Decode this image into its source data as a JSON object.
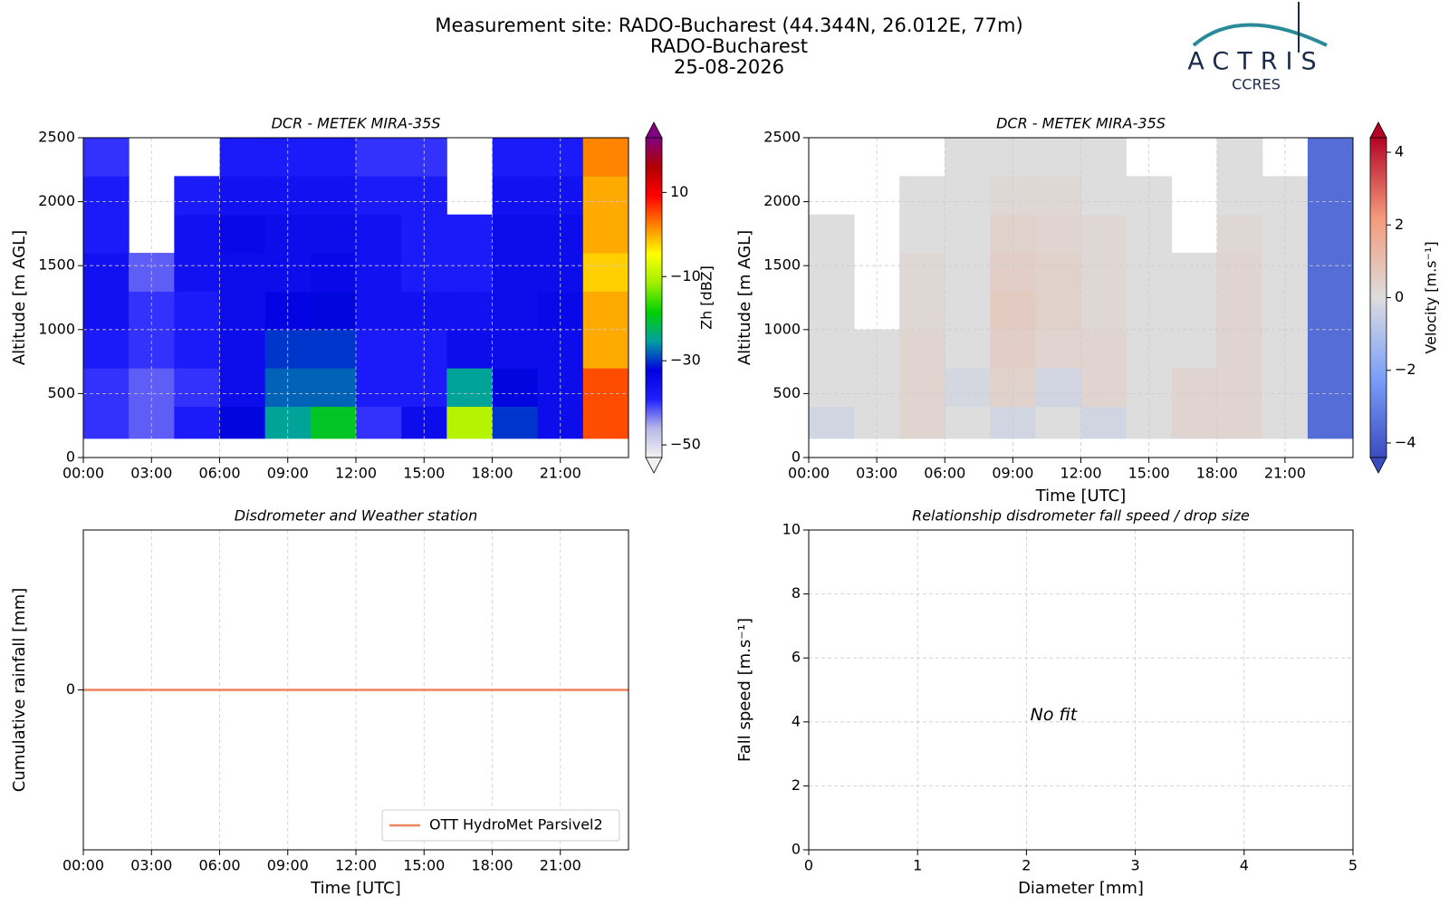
{
  "header": {
    "title": "Measurement site: RADO-Bucharest (44.344N, 26.012E, 77m)",
    "subtitle": "RADO-Bucharest",
    "date": "25-08-2026"
  },
  "logo": {
    "name": "ACTRIS",
    "subtitle": "CCRES"
  },
  "chart_data": [
    {
      "type": "heatmap",
      "title": "DCR - METEK MIRA-35S",
      "y_label": "Altitude [m AGL]",
      "xlim": [
        0,
        24
      ],
      "ylim": [
        0,
        2500
      ],
      "xticks": [
        {
          "value": 0,
          "label": "00:00"
        },
        {
          "value": 3,
          "label": "03:00"
        },
        {
          "value": 6,
          "label": "06:00"
        },
        {
          "value": 9,
          "label": "09:00"
        },
        {
          "value": 12,
          "label": "12:00"
        },
        {
          "value": 15,
          "label": "15:00"
        },
        {
          "value": 18,
          "label": "18:00"
        },
        {
          "value": 21,
          "label": "21:00"
        }
      ],
      "yticks": [
        0,
        500,
        1000,
        1500,
        2000,
        2500
      ],
      "grid": true,
      "x_edges": [
        0,
        2,
        4,
        6,
        8,
        10,
        12,
        14,
        16,
        18,
        20,
        22,
        24
      ],
      "y_edges": [
        150,
        400,
        700,
        1000,
        1300,
        1600,
        1900,
        2200,
        2500
      ],
      "z": [
        [
          -40,
          -42,
          -38,
          -32,
          -25,
          -20,
          -40,
          -35,
          -10,
          -30,
          -35,
          5
        ],
        [
          -40,
          -42,
          -40,
          -35,
          -28,
          -28,
          -38,
          -38,
          -25,
          -32,
          -35,
          5
        ],
        [
          -38,
          -40,
          -38,
          -35,
          -30,
          -30,
          -38,
          -38,
          -35,
          -35,
          -35,
          0
        ],
        [
          -36,
          -40,
          -38,
          -35,
          -33,
          -32,
          -36,
          -36,
          -36,
          -35,
          -34,
          0
        ],
        [
          -36,
          -42,
          -36,
          -35,
          -35,
          -34,
          -36,
          -38,
          -38,
          -35,
          -35,
          -2
        ],
        [
          -38,
          null,
          -36,
          -34,
          -35,
          -35,
          -36,
          -38,
          -38,
          -35,
          -35,
          0
        ],
        [
          -38,
          null,
          -38,
          -36,
          -36,
          -36,
          -38,
          -38,
          null,
          -36,
          -36,
          0
        ],
        [
          -40,
          null,
          null,
          -38,
          -38,
          -38,
          -40,
          -40,
          null,
          -38,
          -38,
          2
        ]
      ],
      "zlim": [
        -53,
        23
      ],
      "zticks": [
        {
          "value": -50,
          "label": "−50"
        },
        {
          "value": -30,
          "label": "−30"
        },
        {
          "value": -10,
          "label": "−10"
        },
        10
      ],
      "colorbar_label": "Zh [dBZ]",
      "colormap": [
        "#f2f2f2",
        "#b8b8e8",
        "#2020ff",
        "#0000e0",
        "#00a0a0",
        "#00d000",
        "#a0f000",
        "#ffff00",
        "#ff8000",
        "#ff0000",
        "#b00000",
        "#800080"
      ]
    },
    {
      "type": "heatmap",
      "title": "DCR - METEK MIRA-35S",
      "x_label": "Time [UTC]",
      "y_label": "Altitude [m AGL]",
      "xlim": [
        0,
        24
      ],
      "ylim": [
        0,
        2500
      ],
      "xticks": [
        {
          "value": 0,
          "label": "00:00"
        },
        {
          "value": 3,
          "label": "03:00"
        },
        {
          "value": 6,
          "label": "06:00"
        },
        {
          "value": 9,
          "label": "09:00"
        },
        {
          "value": 12,
          "label": "12:00"
        },
        {
          "value": 15,
          "label": "15:00"
        },
        {
          "value": 18,
          "label": "18:00"
        },
        {
          "value": 21,
          "label": "21:00"
        }
      ],
      "yticks": [
        0,
        500,
        1000,
        1500,
        2000,
        2500
      ],
      "grid": true,
      "x_edges": [
        0,
        2,
        4,
        6,
        8,
        10,
        12,
        14,
        16,
        18,
        20,
        22,
        24
      ],
      "y_edges": [
        150,
        400,
        700,
        1000,
        1300,
        1600,
        1900,
        2200,
        2500
      ],
      "z": [
        [
          -0.3,
          0,
          0.3,
          0,
          -0.3,
          0,
          -0.3,
          0,
          0.3,
          0.3,
          0,
          -3.5
        ],
        [
          0,
          0,
          0.3,
          -0.2,
          0.4,
          -0.3,
          0.3,
          0,
          0.3,
          0.3,
          0,
          -3.5
        ],
        [
          0,
          0,
          0.3,
          0,
          0.5,
          0.3,
          0.3,
          0,
          0,
          0.3,
          0,
          -3.5
        ],
        [
          0,
          null,
          0.2,
          0,
          0.6,
          0.4,
          0.2,
          0,
          0,
          0.3,
          0,
          -3.5
        ],
        [
          0,
          null,
          0.2,
          0,
          0.5,
          0.4,
          0.2,
          0,
          0,
          0.3,
          0,
          -3.5
        ],
        [
          0,
          null,
          0,
          0,
          0.4,
          0.3,
          0.2,
          0,
          null,
          0.2,
          0,
          -3.5
        ],
        [
          null,
          null,
          0,
          0,
          0.2,
          0.2,
          0,
          0,
          null,
          0,
          0,
          -3.5
        ],
        [
          null,
          null,
          null,
          0,
          0,
          0,
          0,
          null,
          null,
          0,
          null,
          -3.5
        ]
      ],
      "zlim": [
        -4.4,
        4.4
      ],
      "zticks": [
        {
          "value": -4,
          "label": "−4"
        },
        {
          "value": -2,
          "label": "−2"
        },
        0,
        2,
        4
      ],
      "colorbar_label": "Velocity [m.s⁻¹]",
      "colormap": [
        "#3b4cc0",
        "#7b9ff9",
        "#dddddd",
        "#f49a7b",
        "#b40426"
      ]
    },
    {
      "type": "line",
      "title": "Disdrometer and Weather station",
      "x_label": "Time [UTC]",
      "y_label": "Cumulative rainfall [mm]",
      "xlim": [
        0,
        24
      ],
      "ylim": [
        -1,
        1
      ],
      "xticks": [
        {
          "value": 0,
          "label": "00:00"
        },
        {
          "value": 3,
          "label": "03:00"
        },
        {
          "value": 6,
          "label": "06:00"
        },
        {
          "value": 9,
          "label": "09:00"
        },
        {
          "value": 12,
          "label": "12:00"
        },
        {
          "value": 15,
          "label": "15:00"
        },
        {
          "value": 18,
          "label": "18:00"
        },
        {
          "value": 21,
          "label": "21:00"
        }
      ],
      "yticks": [
        0
      ],
      "grid": true,
      "legend": "lower right",
      "x": [
        0,
        24
      ],
      "series": [
        {
          "name": "OTT HydroMet Parsivel2",
          "color": "#f0845c",
          "values": [
            0,
            0
          ]
        }
      ]
    },
    {
      "type": "scatter",
      "title": "Relationship disdrometer fall speed / drop size",
      "x_label": "Diameter [mm]",
      "y_label": "Fall speed [m.s⁻¹]",
      "xlim": [
        0,
        5
      ],
      "ylim": [
        0,
        10
      ],
      "xticks": [
        0,
        1,
        2,
        3,
        4,
        5
      ],
      "yticks": [
        0,
        2,
        4,
        6,
        8,
        10
      ],
      "grid": true,
      "annotation": "No fit"
    }
  ]
}
